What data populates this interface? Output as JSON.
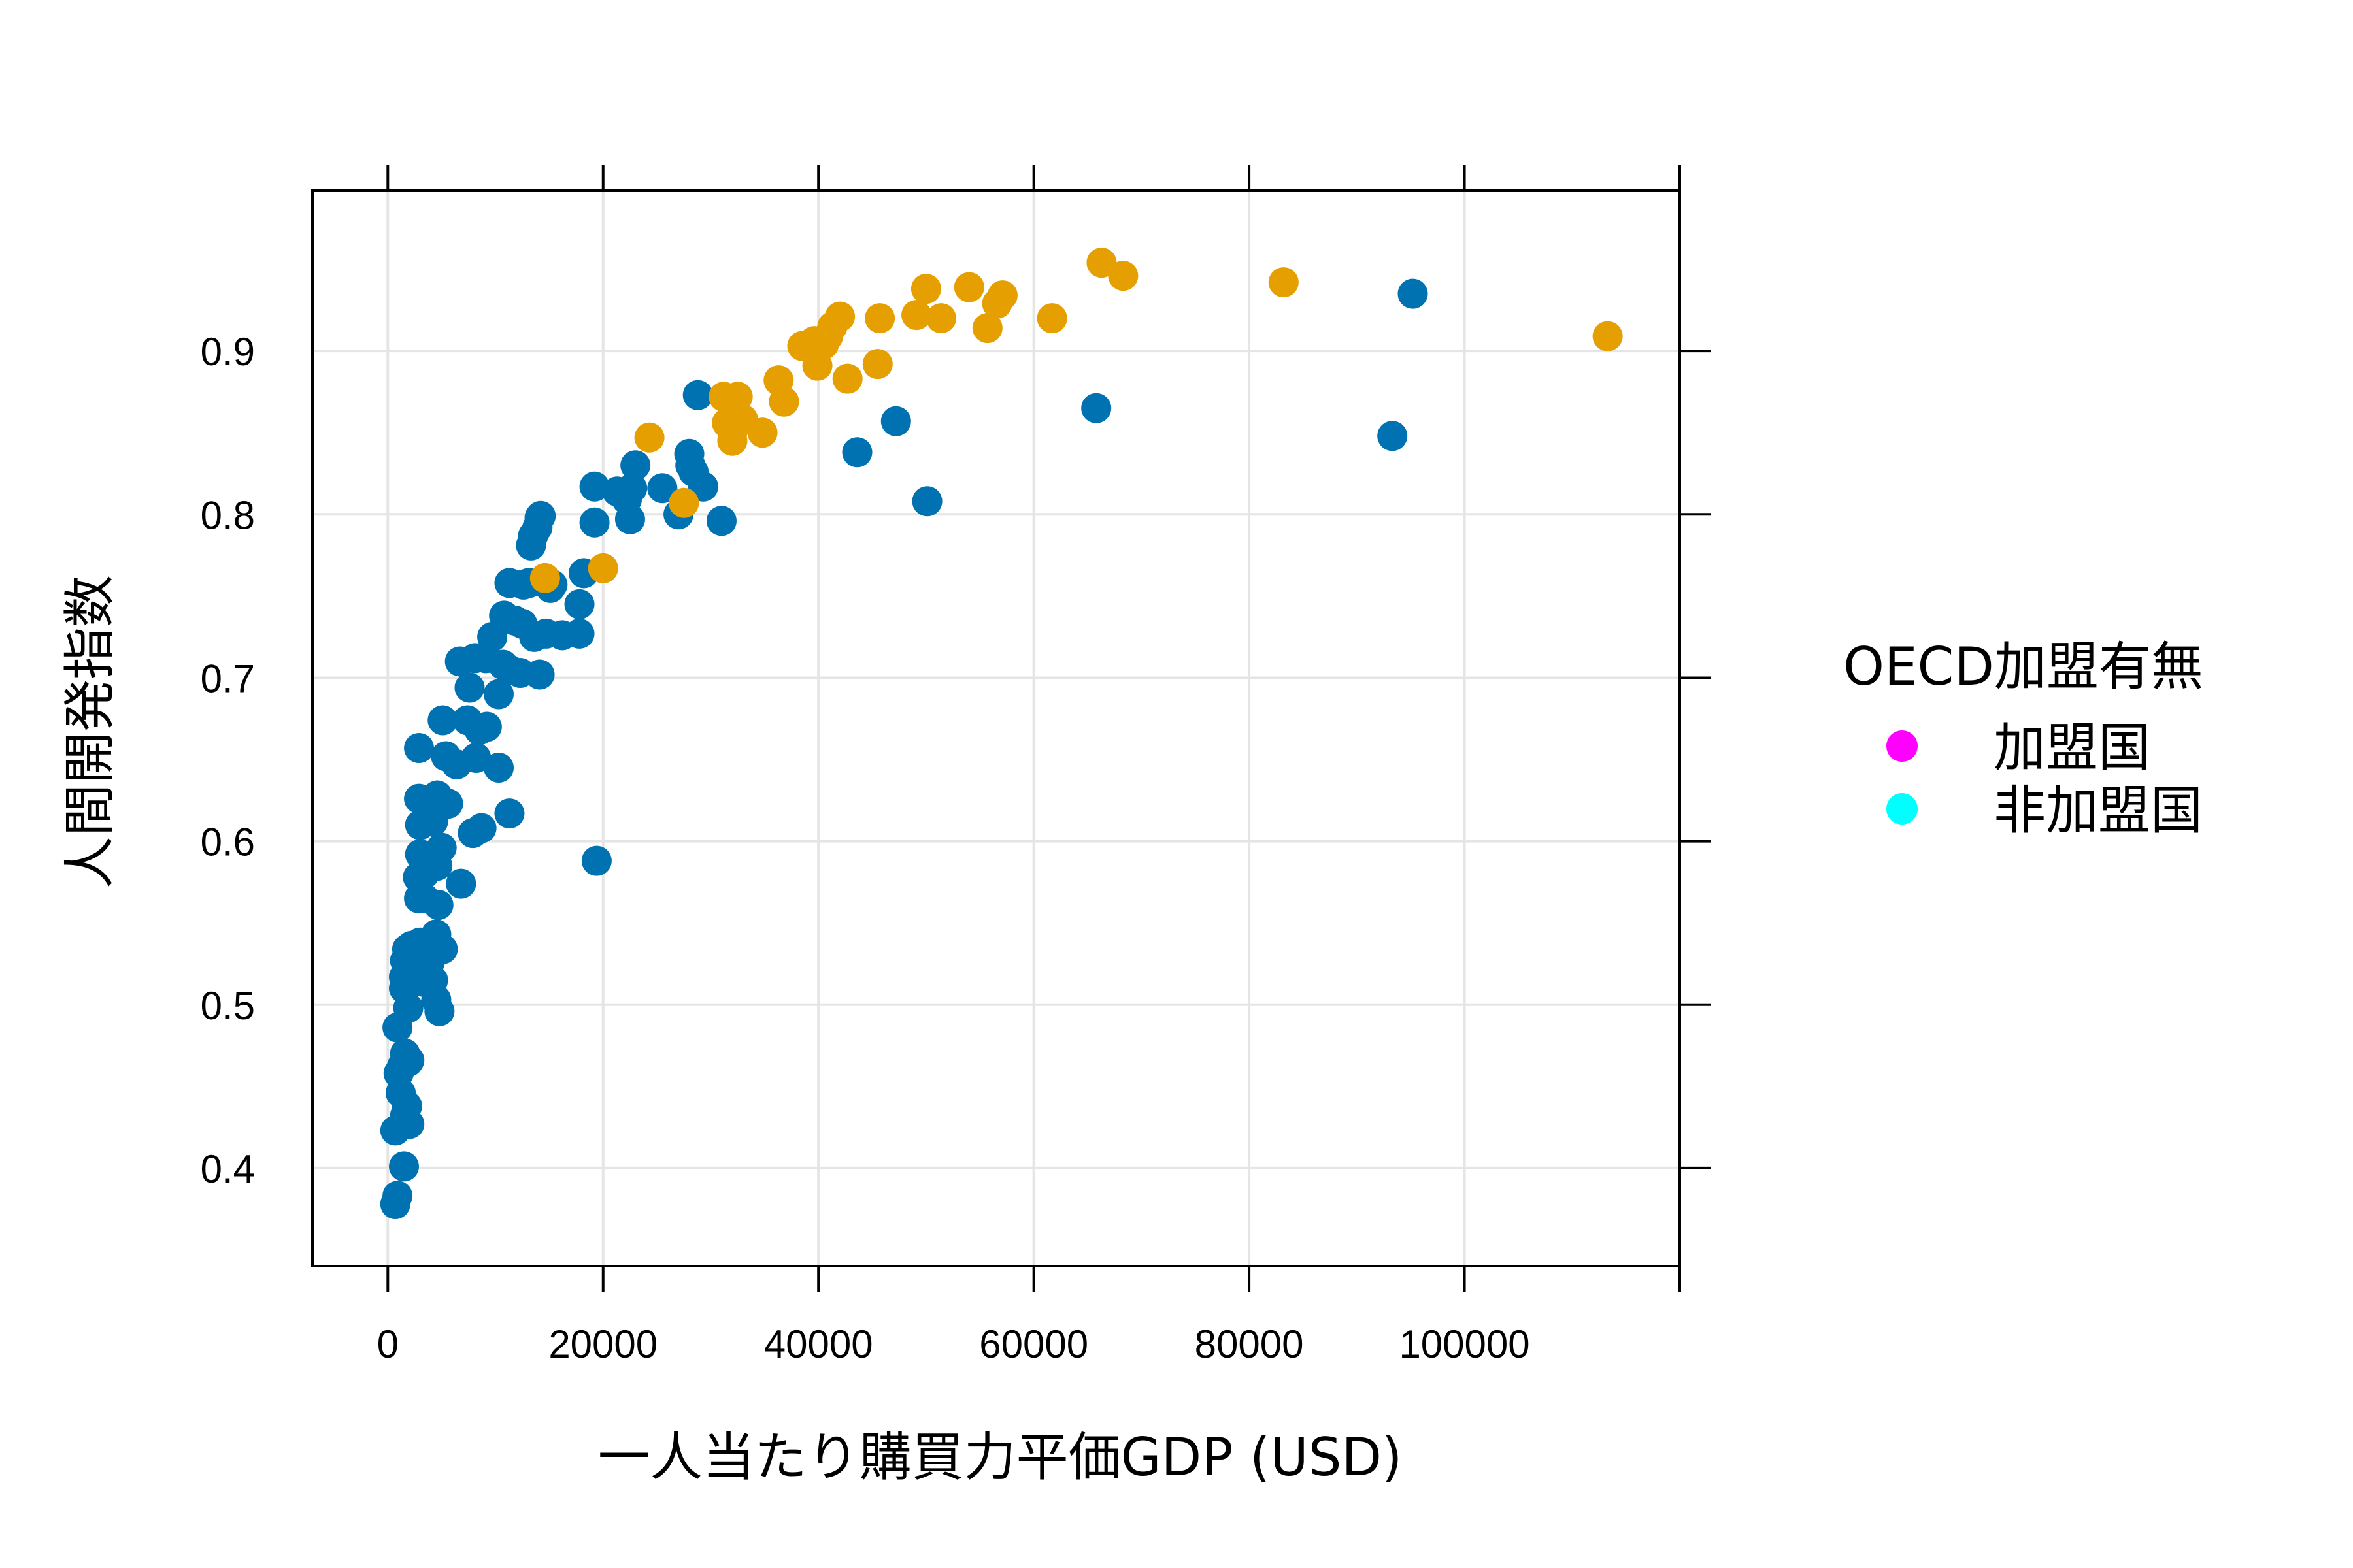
{
  "chart_data": {
    "type": "scatter",
    "xlabel": "一人当たり購買力平価GDP (USD)",
    "ylabel": "人間開発指数",
    "xlim": [
      -7000,
      120000
    ],
    "ylim": [
      0.34,
      0.998
    ],
    "x_ticks": [
      0,
      20000,
      40000,
      60000,
      80000,
      100000
    ],
    "x_tick_labels": [
      "0",
      "20000",
      "40000",
      "60000",
      "80000",
      "100000"
    ],
    "y_ticks": [
      0.4,
      0.5,
      0.6,
      0.7,
      0.8,
      0.9
    ],
    "y_tick_labels": [
      "0.4",
      "0.5",
      "0.6",
      "0.7",
      "0.8",
      "0.9"
    ],
    "grid": true,
    "legend": {
      "title": "OECD加盟有無",
      "position": "right",
      "entries": [
        {
          "label": "加盟国",
          "color": "#ff00ff"
        },
        {
          "label": "非加盟国",
          "color": "#00ffff"
        }
      ]
    },
    "series": [
      {
        "color": "#0072b2",
        "points": [
          [
            700,
            0.378
          ],
          [
            900,
            0.383
          ],
          [
            700,
            0.423
          ],
          [
            1200,
            0.446
          ],
          [
            1500,
            0.401
          ],
          [
            1600,
            0.432
          ],
          [
            1800,
            0.438
          ],
          [
            2000,
            0.427
          ],
          [
            1000,
            0.458
          ],
          [
            1300,
            0.462
          ],
          [
            2000,
            0.466
          ],
          [
            1600,
            0.47
          ],
          [
            1900,
            0.465
          ],
          [
            900,
            0.486
          ],
          [
            1900,
            0.498
          ],
          [
            1500,
            0.51
          ],
          [
            2100,
            0.513
          ],
          [
            1500,
            0.517
          ],
          [
            2500,
            0.52
          ],
          [
            1600,
            0.527
          ],
          [
            1800,
            0.534
          ],
          [
            2200,
            0.536
          ],
          [
            2600,
            0.531
          ],
          [
            3000,
            0.538
          ],
          [
            3300,
            0.514
          ],
          [
            3600,
            0.52
          ],
          [
            3900,
            0.526
          ],
          [
            4200,
            0.515
          ],
          [
            4800,
            0.496
          ],
          [
            4500,
            0.503
          ],
          [
            2600,
            0.522
          ],
          [
            3800,
            0.533
          ],
          [
            4500,
            0.543
          ],
          [
            5100,
            0.534
          ],
          [
            4700,
            0.561
          ],
          [
            3400,
            0.565
          ],
          [
            2900,
            0.565
          ],
          [
            2800,
            0.578
          ],
          [
            3400,
            0.58
          ],
          [
            4600,
            0.585
          ],
          [
            5000,
            0.596
          ],
          [
            3000,
            0.592
          ],
          [
            3000,
            0.61
          ],
          [
            4200,
            0.612
          ],
          [
            4600,
            0.628
          ],
          [
            2900,
            0.626
          ],
          [
            5600,
            0.623
          ],
          [
            6800,
            0.574
          ],
          [
            7900,
            0.605
          ],
          [
            8700,
            0.608
          ],
          [
            11300,
            0.617
          ],
          [
            2900,
            0.657
          ],
          [
            5400,
            0.652
          ],
          [
            6400,
            0.647
          ],
          [
            5100,
            0.674
          ],
          [
            7400,
            0.674
          ],
          [
            8200,
            0.651
          ],
          [
            8500,
            0.668
          ],
          [
            9200,
            0.67
          ],
          [
            10300,
            0.645
          ],
          [
            7600,
            0.694
          ],
          [
            10300,
            0.69
          ],
          [
            10700,
            0.708
          ],
          [
            11300,
            0.705
          ],
          [
            6700,
            0.71
          ],
          [
            8100,
            0.712
          ],
          [
            9100,
            0.712
          ],
          [
            12300,
            0.703
          ],
          [
            14100,
            0.702
          ],
          [
            9700,
            0.725
          ],
          [
            10800,
            0.738
          ],
          [
            11800,
            0.735
          ],
          [
            12500,
            0.733
          ],
          [
            13600,
            0.725
          ],
          [
            14700,
            0.727
          ],
          [
            16200,
            0.726
          ],
          [
            17800,
            0.727
          ],
          [
            11300,
            0.758
          ],
          [
            12600,
            0.757
          ],
          [
            13100,
            0.758
          ],
          [
            14300,
            0.759
          ],
          [
            15100,
            0.755
          ],
          [
            15300,
            0.757
          ],
          [
            17800,
            0.745
          ],
          [
            18200,
            0.764
          ],
          [
            13300,
            0.781
          ],
          [
            13500,
            0.787
          ],
          [
            13900,
            0.792
          ],
          [
            14100,
            0.798
          ],
          [
            14200,
            0.799
          ],
          [
            19200,
            0.795
          ],
          [
            22500,
            0.797
          ],
          [
            27000,
            0.8
          ],
          [
            31000,
            0.796
          ],
          [
            19200,
            0.817
          ],
          [
            21300,
            0.814
          ],
          [
            22200,
            0.809
          ],
          [
            22700,
            0.816
          ],
          [
            23000,
            0.83
          ],
          [
            25500,
            0.816
          ],
          [
            28100,
            0.83
          ],
          [
            28400,
            0.826
          ],
          [
            29300,
            0.817
          ],
          [
            28000,
            0.837
          ],
          [
            28800,
            0.873
          ],
          [
            19400,
            0.588
          ],
          [
            43600,
            0.838
          ],
          [
            47200,
            0.857
          ],
          [
            50100,
            0.808
          ],
          [
            65800,
            0.865
          ],
          [
            93300,
            0.848
          ],
          [
            95200,
            0.935
          ]
        ]
      },
      {
        "color": "#e69f00",
        "points": [
          [
            14600,
            0.761
          ],
          [
            20000,
            0.767
          ],
          [
            24300,
            0.847
          ],
          [
            27500,
            0.807
          ],
          [
            31200,
            0.872
          ],
          [
            31500,
            0.856
          ],
          [
            32000,
            0.85
          ],
          [
            32000,
            0.845
          ],
          [
            32500,
            0.872
          ],
          [
            33000,
            0.858
          ],
          [
            34800,
            0.85
          ],
          [
            36300,
            0.882
          ],
          [
            36800,
            0.869
          ],
          [
            38500,
            0.903
          ],
          [
            39600,
            0.906
          ],
          [
            39900,
            0.891
          ],
          [
            40500,
            0.904
          ],
          [
            40900,
            0.909
          ],
          [
            41300,
            0.915
          ],
          [
            42000,
            0.921
          ],
          [
            42700,
            0.883
          ],
          [
            45500,
            0.892
          ],
          [
            45700,
            0.92
          ],
          [
            49100,
            0.922
          ],
          [
            50000,
            0.938
          ],
          [
            51400,
            0.92
          ],
          [
            54000,
            0.939
          ],
          [
            55700,
            0.914
          ],
          [
            56600,
            0.929
          ],
          [
            57100,
            0.934
          ],
          [
            61700,
            0.92
          ],
          [
            66300,
            0.954
          ],
          [
            68300,
            0.946
          ],
          [
            83200,
            0.942
          ],
          [
            113300,
            0.909
          ]
        ]
      }
    ]
  }
}
